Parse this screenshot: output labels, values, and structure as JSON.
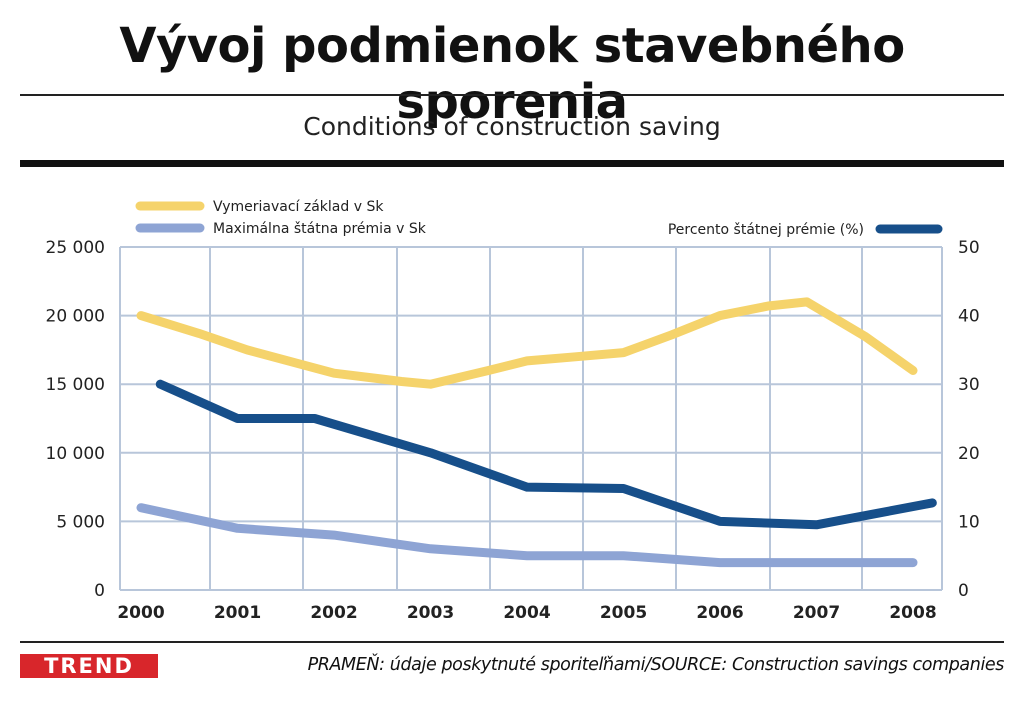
{
  "header": {
    "title": "Vývoj podmienok stavebného sporenia",
    "subtitle": "Conditions of construction saving"
  },
  "footer": {
    "logo": "TREND",
    "source": "PRAMEŇ: údaje poskytnuté sporiteľňami/SOURCE: Construction savings companies"
  },
  "chart_data": {
    "type": "line",
    "title": "Vývoj podmienok stavebného sporenia",
    "subtitle": "Conditions of construction saving",
    "categories": [
      "2000",
      "2001",
      "2002",
      "2003",
      "2004",
      "2005",
      "2006",
      "2007",
      "2008"
    ],
    "y_left": {
      "ylim": [
        0,
        25000
      ],
      "ticks": [
        "0",
        "5 000",
        "10 000",
        "15 000",
        "20 000",
        "25 000"
      ]
    },
    "y_right": {
      "ylim": [
        0,
        50
      ],
      "ticks": [
        "0",
        "10",
        "20",
        "30",
        "40",
        "50"
      ]
    },
    "grid": true,
    "legend_placement": "top",
    "series": [
      {
        "name": "Vymeriavací základ v Sk",
        "axis": "left",
        "color": "#f5d36b",
        "points": [
          {
            "x": 2000.0,
            "y": 20000
          },
          {
            "x": 2000.6,
            "y": 18700
          },
          {
            "x": 2001.1,
            "y": 17500
          },
          {
            "x": 2002.0,
            "y": 15800
          },
          {
            "x": 2002.7,
            "y": 15200
          },
          {
            "x": 2003.0,
            "y": 15000
          },
          {
            "x": 2003.6,
            "y": 16000
          },
          {
            "x": 2004.0,
            "y": 16700
          },
          {
            "x": 2004.5,
            "y": 17000
          },
          {
            "x": 2005.0,
            "y": 17300
          },
          {
            "x": 2005.5,
            "y": 18600
          },
          {
            "x": 2006.0,
            "y": 20000
          },
          {
            "x": 2006.5,
            "y": 20700
          },
          {
            "x": 2006.9,
            "y": 21000
          },
          {
            "x": 2007.5,
            "y": 18500
          },
          {
            "x": 2008.0,
            "y": 16000
          }
        ]
      },
      {
        "name": "Maximálna štátna prémia v Sk",
        "axis": "left",
        "color": "#8ea4d4",
        "points": [
          {
            "x": 2000.0,
            "y": 6000
          },
          {
            "x": 2001.0,
            "y": 4500
          },
          {
            "x": 2002.0,
            "y": 4000
          },
          {
            "x": 2003.0,
            "y": 3000
          },
          {
            "x": 2004.0,
            "y": 2500
          },
          {
            "x": 2005.0,
            "y": 2500
          },
          {
            "x": 2006.0,
            "y": 2000
          },
          {
            "x": 2007.0,
            "y": 2000
          },
          {
            "x": 2008.0,
            "y": 2000
          }
        ]
      },
      {
        "name": "Percento štátnej prémie (%)",
        "axis": "right",
        "color": "#174f8a",
        "points": [
          {
            "x": 2000.2,
            "y": 30
          },
          {
            "x": 2001.0,
            "y": 25
          },
          {
            "x": 2001.8,
            "y": 25
          },
          {
            "x": 2003.0,
            "y": 20
          },
          {
            "x": 2004.0,
            "y": 15
          },
          {
            "x": 2005.0,
            "y": 14.8
          },
          {
            "x": 2006.0,
            "y": 10
          },
          {
            "x": 2007.0,
            "y": 9.5
          },
          {
            "x": 2008.2,
            "y": 12.7
          }
        ]
      }
    ]
  }
}
